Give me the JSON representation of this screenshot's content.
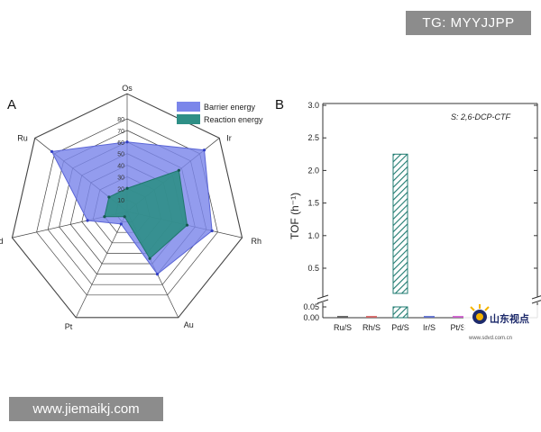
{
  "watermarks": {
    "top_right": "TG: MYYJJPP",
    "bottom_left": "www.jiemaikj.com",
    "logo": "山东视点",
    "logo_sub": "www.sdvd.com.cn"
  },
  "colors": {
    "barrier": "#7b86ea",
    "reaction": "#2e8f86",
    "hatch": "#1f7b70",
    "axis": "#333333"
  },
  "chart_data": [
    {
      "type": "radar",
      "panel": "A",
      "axes": [
        "Os",
        "Ir",
        "Rh",
        "Au",
        "Pt",
        "Pd",
        "Ru"
      ],
      "rlim": [
        0,
        80
      ],
      "ticks": [
        10,
        20,
        30,
        40,
        50,
        60,
        70,
        80
      ],
      "series": [
        {
          "name": "Barrier energy",
          "values": [
            60,
            85,
            75,
            60,
            12,
            35,
            83
          ]
        },
        {
          "name": "Reaction energy",
          "values": [
            20,
            57,
            53,
            45,
            5,
            20,
            20
          ]
        }
      ]
    },
    {
      "type": "bar",
      "panel": "B",
      "annotation": "S: 2,6-DCP-CTF",
      "categories": [
        "Ru/S",
        "Rh/S",
        "Pd/S",
        "Ir/S",
        "Pt/S"
      ],
      "values": [
        0.005,
        0.001,
        2.25,
        0.001,
        0.004
      ],
      "ylabel": "TOF (h⁻¹)",
      "ylim": [
        0,
        3.0
      ],
      "axis_break": [
        0.05,
        0.3
      ],
      "yticks_upper": [
        "0.5",
        "1.0",
        "1.5",
        "2.0",
        "2.5",
        "3.0"
      ],
      "yticks_lower": [
        "0.00",
        "0.05"
      ]
    }
  ]
}
